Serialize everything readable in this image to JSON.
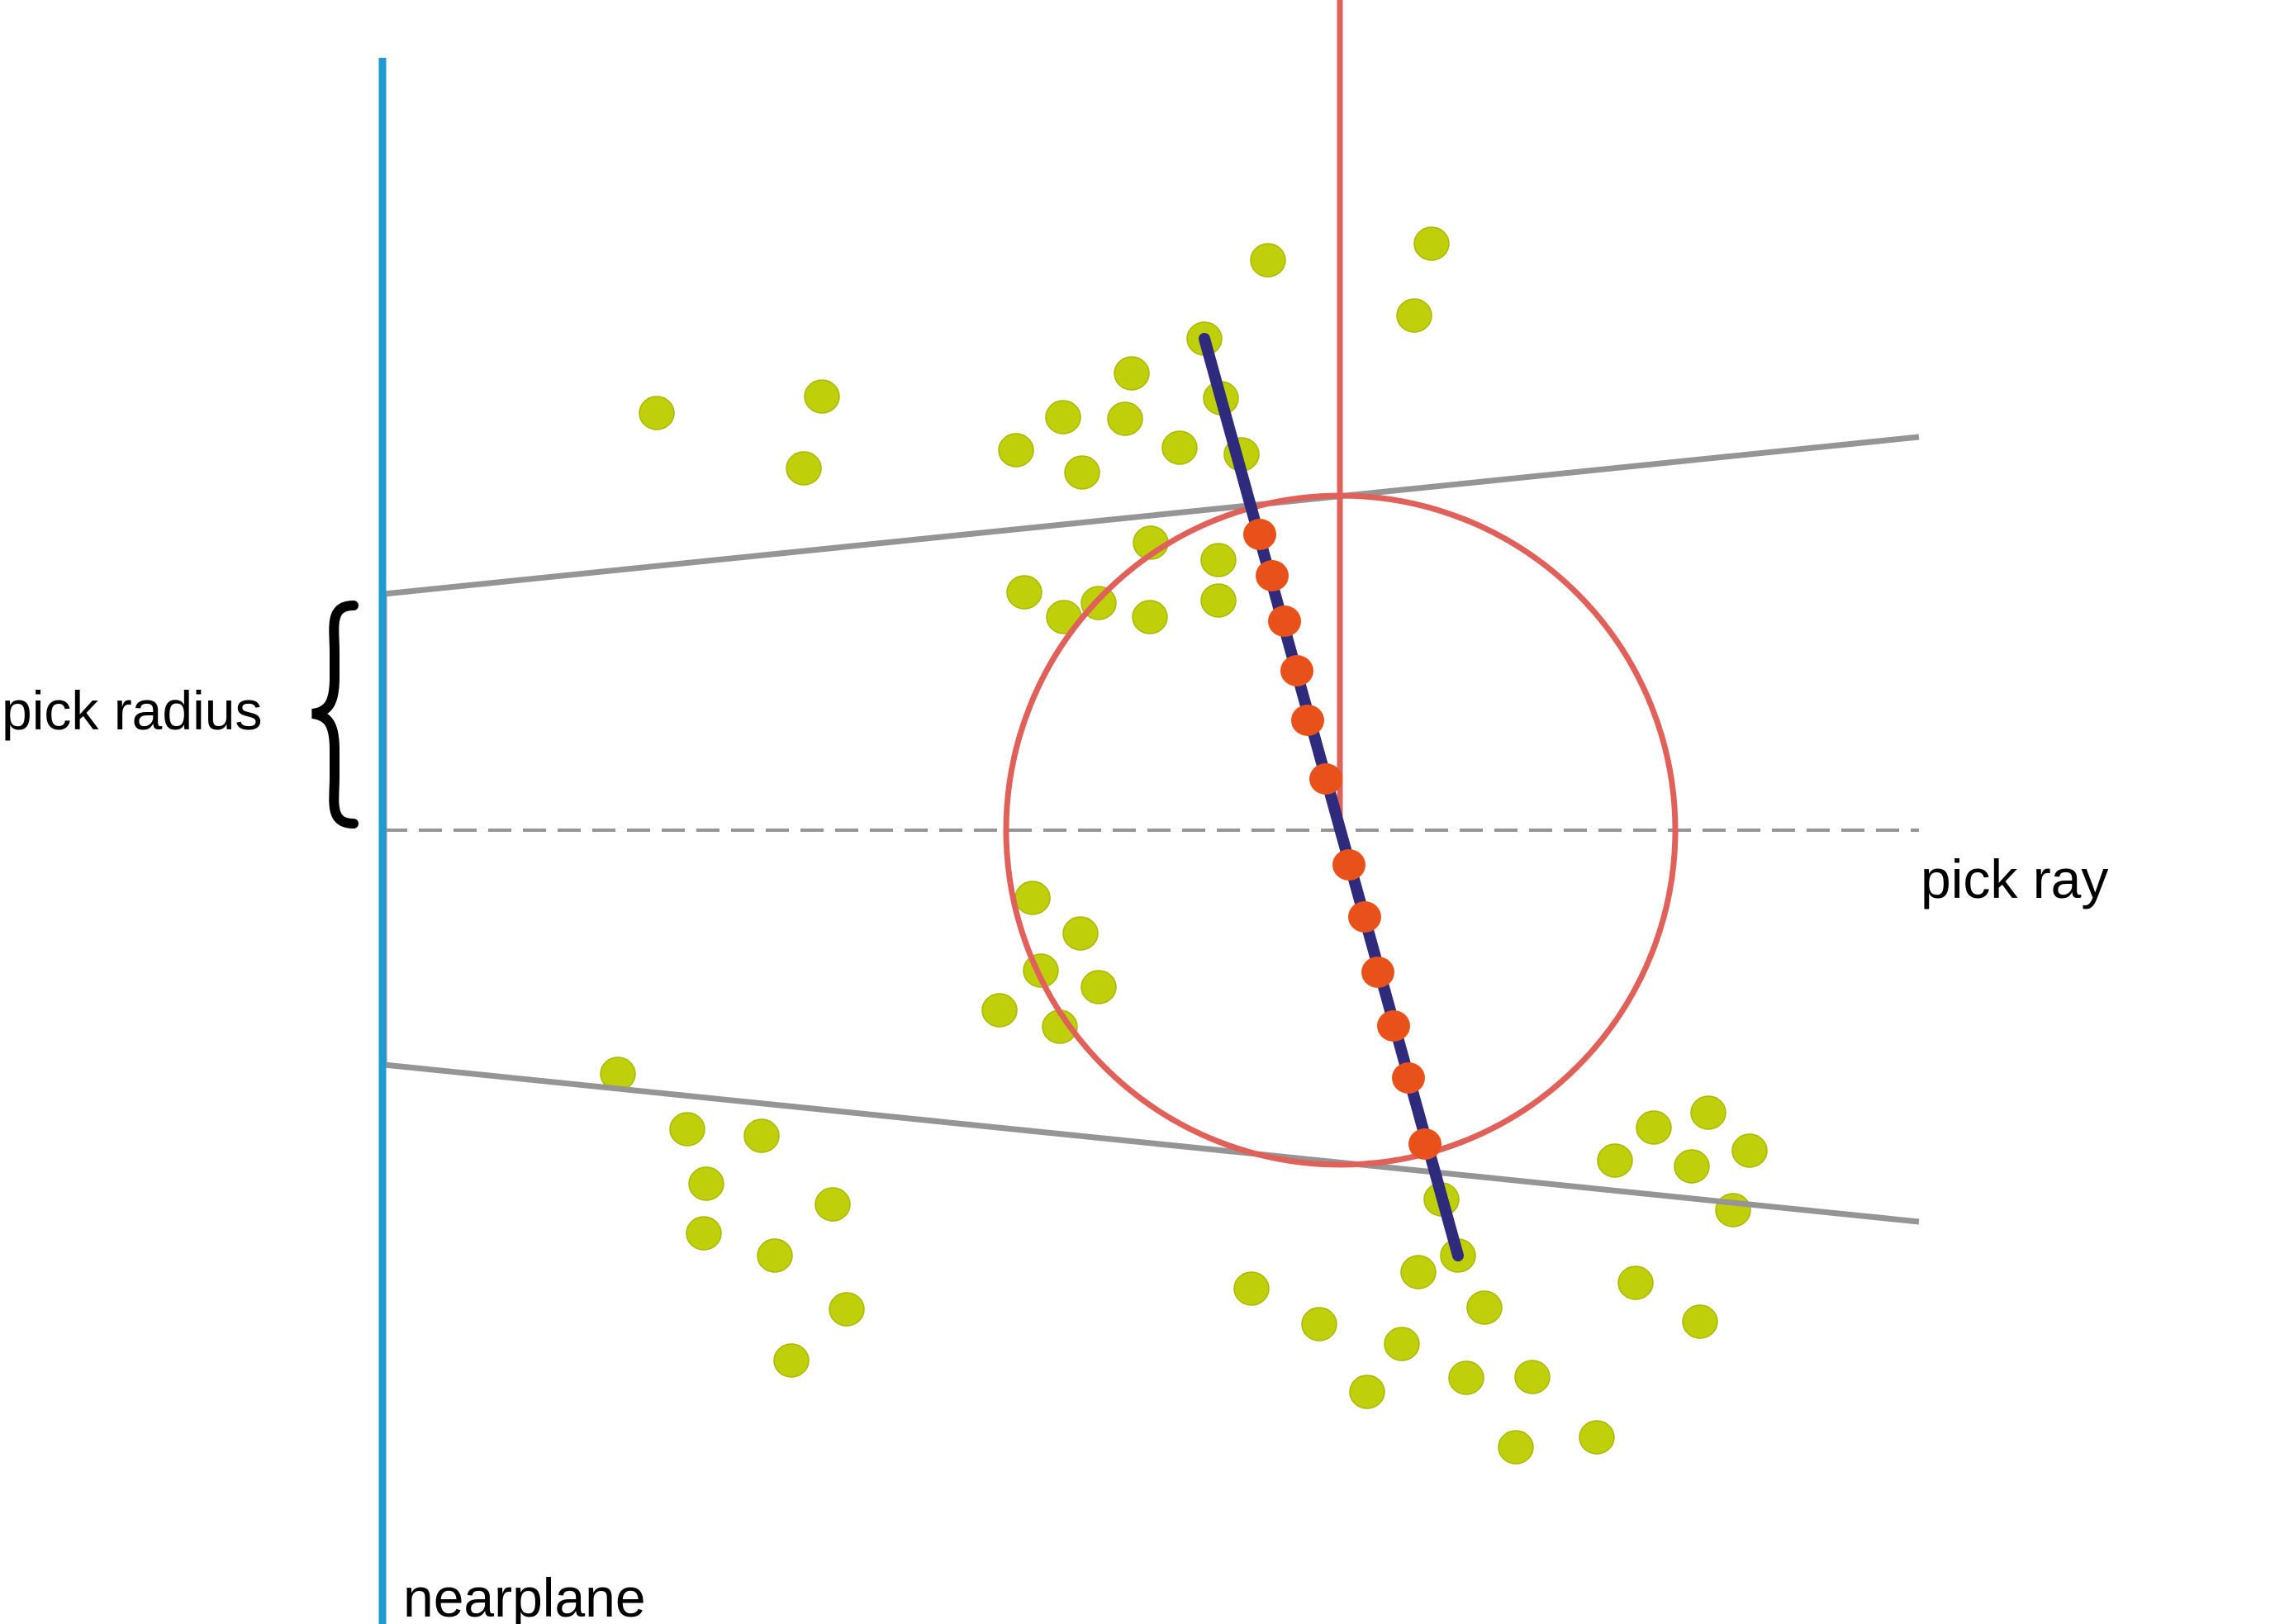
{
  "labels": {
    "pick_radius": "pick radius",
    "pick_ray": "pick ray",
    "nearplane": "nearplane"
  },
  "colors": {
    "nearplane": "#1f9bd2",
    "frustum": "#959595",
    "pick_ray": "#959595",
    "pick_sphere": "#e0605a",
    "line_segment": "#2e2a7c",
    "hit_point": "#e8511a",
    "scatter_point": "#bfd00a",
    "brace": "#000000"
  },
  "icons": {
    "brace": "curly-brace-icon"
  }
}
